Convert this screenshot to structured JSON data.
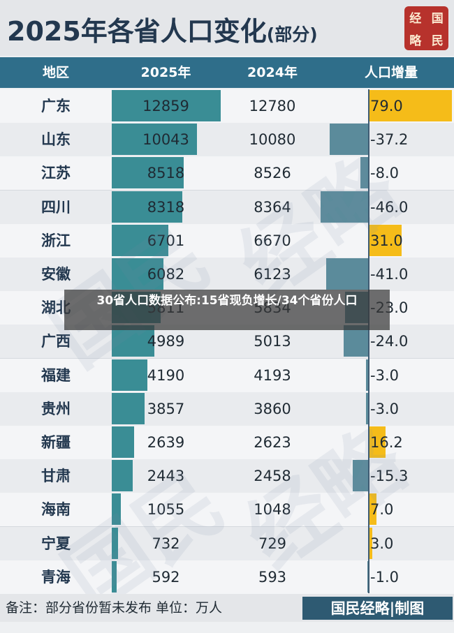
{
  "title": "2025年各省人口变化",
  "title_suffix": "(部分)",
  "seal": [
    "经",
    "国",
    "略",
    "民"
  ],
  "headers": [
    "地区",
    "2025年",
    "2024年",
    "人口增量"
  ],
  "overlay_text": "30省人口数据公布:15省现负增长/34个省份人口",
  "footer": {
    "note": "备注：部分省份暂未发布  单位：万人",
    "brand": "国民经略|制图"
  },
  "watermark": [
    "国",
    "民",
    "经",
    "略"
  ],
  "colors": {
    "header": "#2f6e8a",
    "bar_2025": "#3a8d95",
    "negative": "#5b8b9b",
    "positive": "#f5bc19",
    "seal": "#b7322c"
  },
  "chart_data": {
    "type": "table",
    "columns": [
      "地区",
      "2025年",
      "2024年",
      "人口增量"
    ],
    "rows": [
      {
        "region": "广东",
        "y2025": "12859",
        "y2024": "12780",
        "delta": "79.0",
        "delta_num": 79.0
      },
      {
        "region": "山东",
        "y2025": "10043",
        "y2024": "10080",
        "delta": "-37.2",
        "delta_num": -37.2
      },
      {
        "region": "江苏",
        "y2025": "8518",
        "y2024": "8526",
        "delta": "-8.0",
        "delta_num": -8.0
      },
      {
        "region": "四川",
        "y2025": "8318",
        "y2024": "8364",
        "delta": "-46.0",
        "delta_num": -46.0
      },
      {
        "region": "浙江",
        "y2025": "6701",
        "y2024": "6670",
        "delta": "31.0",
        "delta_num": 31.0
      },
      {
        "region": "安徽",
        "y2025": "6082",
        "y2024": "6123",
        "delta": "-41.0",
        "delta_num": -41.0
      },
      {
        "region": "湖北",
        "y2025": "5811",
        "y2024": "5834",
        "delta": "-23.0",
        "delta_num": -23.0
      },
      {
        "region": "广西",
        "y2025": "4989",
        "y2024": "5013",
        "delta": "-24.0",
        "delta_num": -24.0
      },
      {
        "region": "福建",
        "y2025": "4190",
        "y2024": "4193",
        "delta": "-3.0",
        "delta_num": -3.0
      },
      {
        "region": "贵州",
        "y2025": "3857",
        "y2024": "3860",
        "delta": "-3.0",
        "delta_num": -3.0
      },
      {
        "region": "新疆",
        "y2025": "2639",
        "y2024": "2623",
        "delta": "16.2",
        "delta_num": 16.2
      },
      {
        "region": "甘肃",
        "y2025": "2443",
        "y2024": "2458",
        "delta": "-15.3",
        "delta_num": -15.3
      },
      {
        "region": "海南",
        "y2025": "1055",
        "y2024": "1048",
        "delta": "7.0",
        "delta_num": 7.0
      },
      {
        "region": "宁夏",
        "y2025": "732",
        "y2024": "729",
        "delta": "3.0",
        "delta_num": 3.0
      },
      {
        "region": "青海",
        "y2025": "592",
        "y2024": "593",
        "delta": "-1.0",
        "delta_num": -1.0
      }
    ]
  }
}
